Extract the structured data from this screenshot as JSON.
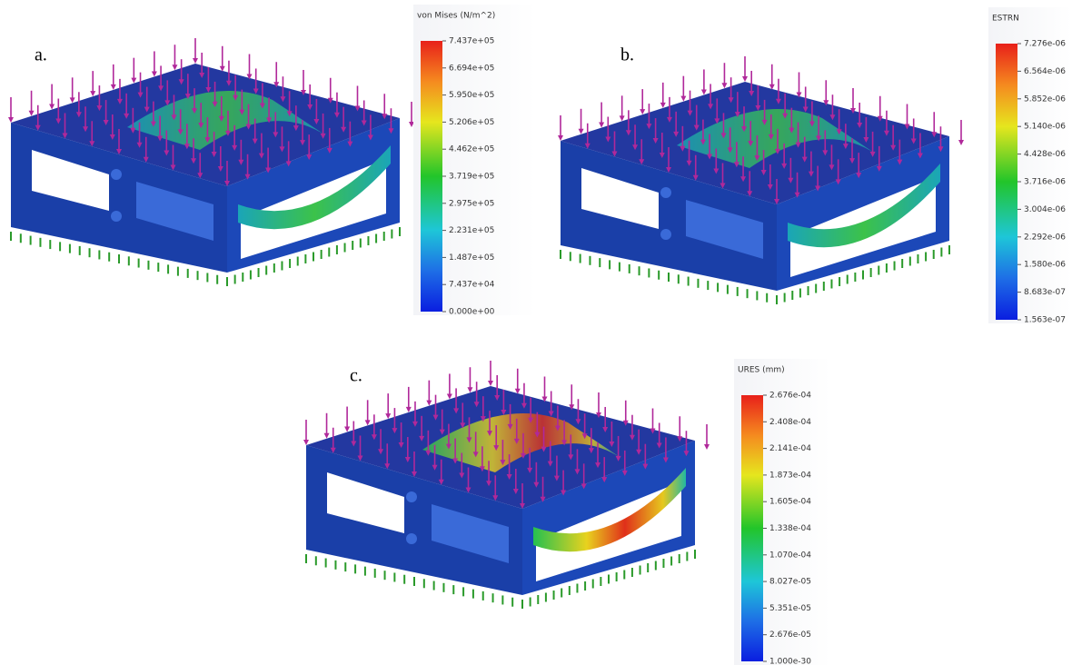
{
  "panels": [
    {
      "label": "a.",
      "legend": {
        "title": "von Mises (N/m^2)",
        "ticks": [
          "7.437e+05",
          "6.694e+05",
          "5.950e+05",
          "5.206e+05",
          "4.462e+05",
          "3.719e+05",
          "2.975e+05",
          "2.231e+05",
          "1.487e+05",
          "7.437e+04",
          "0.000e+00"
        ]
      }
    },
    {
      "label": "b.",
      "legend": {
        "title": "ESTRN",
        "ticks": [
          "7.276e-06",
          "6.564e-06",
          "5.852e-06",
          "5.140e-06",
          "4.428e-06",
          "3.716e-06",
          "3.004e-06",
          "2.292e-06",
          "1.580e-06",
          "8.683e-07",
          "1.563e-07"
        ]
      }
    },
    {
      "label": "c.",
      "legend": {
        "title": "URES (mm)",
        "ticks": [
          "2.676e-04",
          "2.408e-04",
          "2.141e-04",
          "1.873e-04",
          "1.605e-04",
          "1.338e-04",
          "1.070e-04",
          "8.027e-05",
          "5.351e-05",
          "2.676e-05",
          "1.000e-30"
        ]
      }
    }
  ]
}
